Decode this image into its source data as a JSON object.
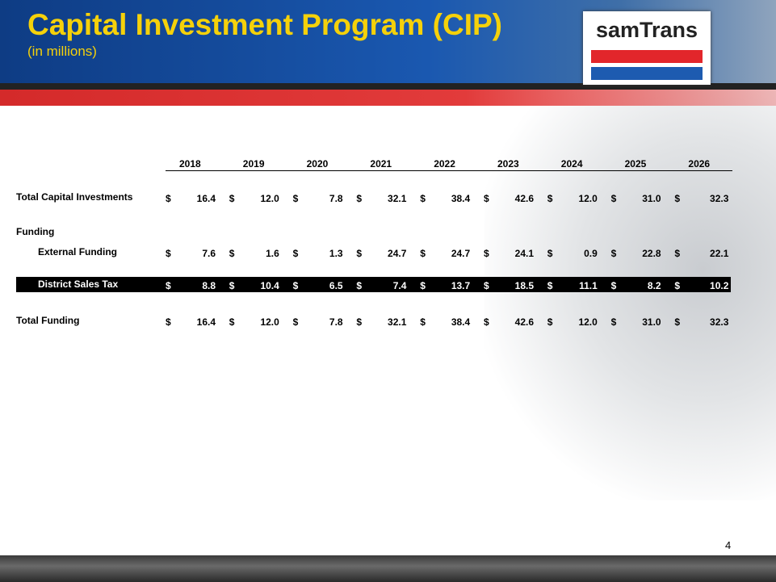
{
  "header": {
    "title": "Capital Investment Program (CIP)",
    "subtitle": "(in millions)",
    "logo": "samTrans"
  },
  "table": {
    "columns": [
      "2018",
      "2019",
      "2020",
      "2021",
      "2022",
      "2023",
      "2024",
      "2025",
      "2026"
    ],
    "currency": "$",
    "rows": [
      {
        "label": "Total Capital Investments",
        "values": [
          "16.4",
          "12.0",
          "7.8",
          "32.1",
          "38.4",
          "42.6",
          "12.0",
          "31.0",
          "32.3"
        ]
      },
      {
        "label": "Funding"
      },
      {
        "label": "External Funding",
        "values": [
          "7.6",
          "1.6",
          "1.3",
          "24.7",
          "24.7",
          "24.1",
          "0.9",
          "22.8",
          "22.1"
        ]
      },
      {
        "label": "District Sales Tax",
        "values": [
          "8.8",
          "10.4",
          "6.5",
          "7.4",
          "13.7",
          "18.5",
          "11.1",
          "8.2",
          "10.2"
        ]
      },
      {
        "label": "Total Funding",
        "values": [
          "16.4",
          "12.0",
          "7.8",
          "32.1",
          "38.4",
          "42.6",
          "12.0",
          "31.0",
          "32.3"
        ]
      }
    ]
  },
  "page_number": "4"
}
